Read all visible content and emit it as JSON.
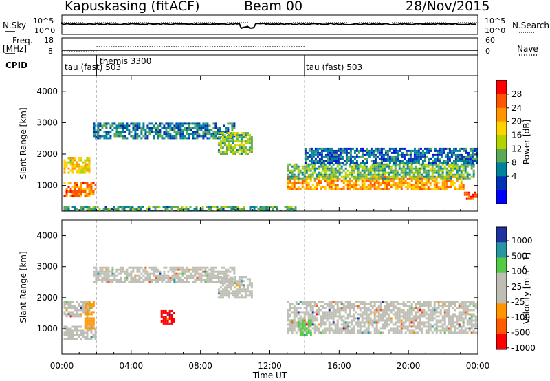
{
  "header": {
    "station": "Kapuskasing (fitACF)",
    "beam": "Beam 00",
    "date": "28/Nov/2015"
  },
  "summary": {
    "nsky_label": "N.Sky",
    "nsky_ticks": [
      "10^5",
      "10^0"
    ],
    "nsearch_ticks": [
      "10^5",
      "10^0"
    ],
    "nsearch_label": "N.Search",
    "freq_label_1": "Freq.",
    "freq_label_2": "[MHz]",
    "freq_ticks": [
      "18",
      "8"
    ],
    "nave_ticks": [
      "60",
      "0"
    ],
    "nave_label": "Nave",
    "cpid_label": "CPID",
    "cpid_segments": [
      "tau (fast) 503",
      "themis 3300",
      "tau (fast) 503"
    ]
  },
  "axes": {
    "xlabel": "Time UT",
    "xticks": [
      "00:00",
      "04:00",
      "08:00",
      "12:00",
      "16:00",
      "20:00",
      "00:00"
    ],
    "ylabel": "Slant Range [km]",
    "yticks": [
      "1000",
      "2000",
      "3000",
      "4000"
    ]
  },
  "colorbars": {
    "power": {
      "label": "Power [dB]",
      "ticks": [
        "28",
        "24",
        "20",
        "16",
        "12",
        "8",
        "4"
      ],
      "colors": [
        "#ff0000",
        "#ff5500",
        "#ff9500",
        "#ffd200",
        "#b4d200",
        "#5aaa55",
        "#00829b",
        "#0032b4",
        "#0000ff"
      ]
    },
    "velocity": {
      "label": "Velocity [m s^-1]",
      "ticks": [
        "1000",
        "500",
        "100",
        "25",
        "-25",
        "-100",
        "-500",
        "-1000"
      ],
      "colors": [
        "#1e32a0",
        "#2896a0",
        "#55c846",
        "#bebeb4",
        "#bebeb4",
        "#ff9600",
        "#ff5a00",
        "#ff0000"
      ]
    }
  },
  "chart_data": [
    {
      "type": "line",
      "title": "Kapuskasing (fitACF) Beam 00 28/Nov/2015",
      "series": [
        {
          "name": "N.Sky",
          "x_hours": [
            0,
            6,
            12,
            18,
            24
          ],
          "values": [
            10000.0,
            10000.0,
            10000.0,
            10000.0,
            10000.0
          ]
        },
        {
          "name": "N.Search",
          "x_hours": [
            0,
            6,
            12,
            18,
            24
          ],
          "values": [
            10000.0,
            10000.0,
            10000.0,
            10000.0,
            10000.0
          ]
        }
      ],
      "ylim": [
        1,
        100000
      ],
      "yscale": "log"
    },
    {
      "type": "line",
      "series": [
        {
          "name": "Freq.",
          "x_hours": [
            0,
            2,
            14,
            24
          ],
          "values": [
            10.2,
            10.2,
            10.2,
            10.2
          ]
        },
        {
          "name": "Nave",
          "x_hours": [
            2,
            14
          ],
          "values": [
            30,
            30
          ]
        }
      ]
    },
    {
      "type": "heatmap",
      "xlabel": "Time UT",
      "ylabel": "Slant Range [km]",
      "xlim_hours": [
        0,
        24
      ],
      "ylim": [
        180,
        4500
      ],
      "zlabel": "Power [dB]",
      "zlim": [
        0,
        30
      ],
      "regions": [
        {
          "t0": 0.1,
          "t1": 1.9,
          "r0": 700,
          "r1": 1100,
          "z": 24
        },
        {
          "t0": 0.1,
          "t1": 1.6,
          "r0": 1400,
          "r1": 1900,
          "z": 18
        },
        {
          "t0": 1.8,
          "t1": 10.0,
          "r0": 2500,
          "r1": 3000,
          "z": 7
        },
        {
          "t0": 9.0,
          "t1": 11.0,
          "r0": 2000,
          "r1": 2700,
          "z": 13
        },
        {
          "t0": 13.0,
          "t1": 23.2,
          "r0": 900,
          "r1": 1300,
          "z": 22
        },
        {
          "t0": 13.0,
          "t1": 23.8,
          "r0": 1200,
          "r1": 1700,
          "z": 12
        },
        {
          "t0": 14.0,
          "t1": 24.0,
          "r0": 1700,
          "r1": 2200,
          "z": 6
        },
        {
          "t0": 23.2,
          "t1": 24.0,
          "r0": 600,
          "r1": 800,
          "z": 26
        },
        {
          "t0": 0.1,
          "t1": 13.5,
          "r0": 180,
          "r1": 350,
          "z": 10
        }
      ]
    },
    {
      "type": "heatmap",
      "xlabel": "Time UT",
      "ylabel": "Slant Range [km]",
      "xlim_hours": [
        0,
        24
      ],
      "ylim": [
        180,
        4500
      ],
      "zlabel": "Velocity [m s^-1]",
      "zlim": [
        -1000,
        1000
      ],
      "regions": [
        {
          "t0": 0.1,
          "t1": 1.9,
          "r0": 700,
          "r1": 1100,
          "z": 0
        },
        {
          "t0": 0.1,
          "t1": 1.6,
          "r0": 1400,
          "r1": 1900,
          "z": 0
        },
        {
          "t0": 1.3,
          "t1": 1.8,
          "r0": 1000,
          "r1": 1900,
          "z": -150
        },
        {
          "t0": 1.8,
          "t1": 10.0,
          "r0": 2500,
          "r1": 3000,
          "z": 0
        },
        {
          "t0": 9.0,
          "t1": 11.0,
          "r0": 2000,
          "r1": 2700,
          "z": 0
        },
        {
          "t0": 5.7,
          "t1": 6.5,
          "r0": 1200,
          "r1": 1600,
          "z": -900
        },
        {
          "t0": 13.0,
          "t1": 24.0,
          "r0": 900,
          "r1": 1900,
          "z": 0
        },
        {
          "t0": 13.6,
          "t1": 14.4,
          "r0": 800,
          "r1": 1300,
          "z": 150
        }
      ]
    }
  ]
}
